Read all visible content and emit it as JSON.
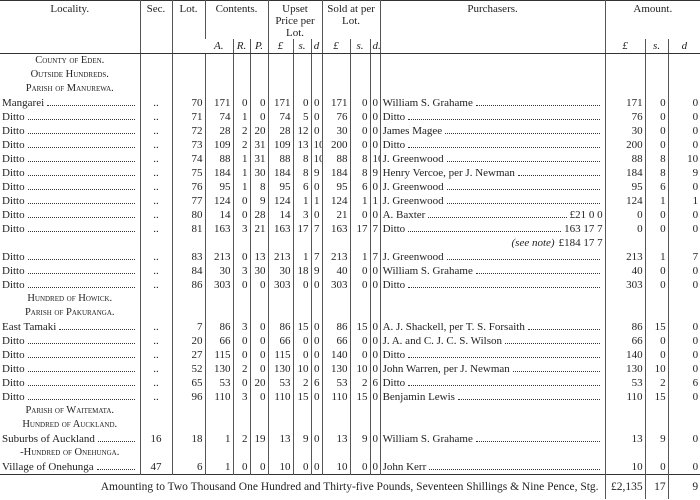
{
  "table": {
    "header": {
      "columns": [
        "Locality.",
        "Sec.",
        "Lot.",
        "Contents.",
        "Upset Price per Lot.",
        "Sold at per Lot.",
        "Purchasers.",
        "Amount."
      ],
      "contents_units": [
        "A.",
        "R.",
        "P."
      ],
      "upset_units": [
        "£",
        "s.",
        "d"
      ],
      "sold_units": [
        "£",
        "s.",
        "d."
      ],
      "amount_units": [
        "£",
        "s.",
        "d"
      ]
    },
    "rows": [
      {
        "heading": "County of Eden."
      },
      {
        "heading": "Outside Hundreds."
      },
      {
        "heading": "Parish of Manurewa."
      },
      {
        "locality": "Mangarei",
        "sec": "..",
        "lot": 70,
        "contents": [
          171,
          0,
          0
        ],
        "upset": [
          171,
          0,
          0
        ],
        "sold": [
          171,
          0,
          0
        ],
        "purchaser": "William S. Grahame",
        "amount": [
          171,
          0,
          0
        ]
      },
      {
        "locality": "Ditto",
        "sec": "..",
        "lot": 71,
        "contents": [
          74,
          1,
          0
        ],
        "upset": [
          74,
          5,
          0
        ],
        "sold": [
          76,
          0,
          0
        ],
        "purchaser": "Ditto",
        "amount": [
          76,
          0,
          0
        ]
      },
      {
        "locality": "Ditto",
        "sec": "..",
        "lot": 72,
        "contents": [
          28,
          2,
          20
        ],
        "upset": [
          28,
          12,
          0
        ],
        "sold": [
          30,
          0,
          0
        ],
        "purchaser": "James Magee",
        "amount": [
          30,
          0,
          0
        ]
      },
      {
        "locality": "Ditto",
        "sec": "..",
        "lot": 73,
        "contents": [
          109,
          2,
          31
        ],
        "upset": [
          109,
          13,
          10
        ],
        "sold": [
          200,
          0,
          0
        ],
        "purchaser": "Ditto",
        "amount": [
          200,
          0,
          0
        ]
      },
      {
        "locality": "Ditto",
        "sec": "..",
        "lot": 74,
        "contents": [
          88,
          1,
          31
        ],
        "upset": [
          88,
          8,
          10
        ],
        "sold": [
          88,
          8,
          10
        ],
        "purchaser": "J. Greenwood",
        "amount": [
          88,
          8,
          10
        ]
      },
      {
        "locality": "Ditto",
        "sec": "..",
        "lot": 75,
        "contents": [
          184,
          1,
          30
        ],
        "upset": [
          184,
          8,
          9
        ],
        "sold": [
          184,
          8,
          9
        ],
        "purchaser": "Henry Vercoe, per J. Newman",
        "amount": [
          184,
          8,
          9
        ]
      },
      {
        "locality": "Ditto",
        "sec": "..",
        "lot": 76,
        "contents": [
          95,
          1,
          8
        ],
        "upset": [
          95,
          6,
          0
        ],
        "sold": [
          95,
          6,
          0
        ],
        "purchaser": "J. Greenwood",
        "amount": [
          95,
          6,
          0
        ]
      },
      {
        "locality": "Ditto",
        "sec": "..",
        "lot": 77,
        "contents": [
          124,
          0,
          9
        ],
        "upset": [
          124,
          1,
          1
        ],
        "sold": [
          124,
          1,
          1
        ],
        "purchaser": "J. Greenwood",
        "amount": [
          124,
          1,
          1
        ]
      },
      {
        "locality": "Ditto",
        "sec": "..",
        "lot": 80,
        "contents": [
          14,
          0,
          28
        ],
        "upset": [
          14,
          3,
          0
        ],
        "sold": [
          21,
          0,
          0
        ],
        "purchaser": "A. Baxter",
        "purchaser_amount": "£21 0 0",
        "amount": [
          0,
          0,
          0
        ]
      },
      {
        "locality": "Ditto",
        "sec": "..",
        "lot": 81,
        "contents": [
          163,
          3,
          21
        ],
        "upset": [
          163,
          17,
          7
        ],
        "sold": [
          163,
          17,
          7
        ],
        "purchaser": "Ditto",
        "purchaser_amount": "163 17 7",
        "amount": [
          0,
          0,
          0
        ]
      },
      {
        "note": "(see note)",
        "note_amount": "£184 17 7"
      },
      {
        "locality": "Ditto",
        "sec": "..",
        "lot": 83,
        "contents": [
          213,
          0,
          13
        ],
        "upset": [
          213,
          1,
          7
        ],
        "sold": [
          213,
          1,
          7
        ],
        "purchaser": "J. Greenwood",
        "amount": [
          213,
          1,
          7
        ]
      },
      {
        "locality": "Ditto",
        "sec": "..",
        "lot": 84,
        "contents": [
          30,
          3,
          30
        ],
        "upset": [
          30,
          18,
          9
        ],
        "sold": [
          40,
          0,
          0
        ],
        "purchaser": "William S. Grahame",
        "amount": [
          40,
          0,
          0
        ]
      },
      {
        "locality": "Ditto",
        "sec": "..",
        "lot": 86,
        "contents": [
          303,
          0,
          0
        ],
        "upset": [
          303,
          0,
          0
        ],
        "sold": [
          303,
          0,
          0
        ],
        "purchaser": "Ditto",
        "amount": [
          303,
          0,
          0
        ]
      },
      {
        "heading": "Hundred of Howick."
      },
      {
        "heading": "Parish of Pakuranga."
      },
      {
        "locality": "East Tamaki",
        "sec": "..",
        "lot": 7,
        "contents": [
          86,
          3,
          0
        ],
        "upset": [
          86,
          15,
          0
        ],
        "sold": [
          86,
          15,
          0
        ],
        "purchaser": "A. J. Shackell, per T. S. Forsaith",
        "amount": [
          86,
          15,
          0
        ]
      },
      {
        "locality": "Ditto",
        "sec": "..",
        "lot": 20,
        "contents": [
          66,
          0,
          0
        ],
        "upset": [
          66,
          0,
          0
        ],
        "sold": [
          66,
          0,
          0
        ],
        "purchaser": "J. A. and C. J. C. S. Wilson",
        "amount": [
          66,
          0,
          0
        ]
      },
      {
        "locality": "Ditto",
        "sec": "..",
        "lot": 27,
        "contents": [
          115,
          0,
          0
        ],
        "upset": [
          115,
          0,
          0
        ],
        "sold": [
          140,
          0,
          0
        ],
        "purchaser": "Ditto",
        "amount": [
          140,
          0,
          0
        ]
      },
      {
        "locality": "Ditto",
        "sec": "..",
        "lot": 52,
        "contents": [
          130,
          2,
          0
        ],
        "upset": [
          130,
          10,
          0
        ],
        "sold": [
          130,
          10,
          0
        ],
        "purchaser": "John Warren, per J. Newman",
        "amount": [
          130,
          10,
          0
        ]
      },
      {
        "locality": "Ditto",
        "sec": "..",
        "lot": 65,
        "contents": [
          53,
          0,
          20
        ],
        "upset": [
          53,
          2,
          6
        ],
        "sold": [
          53,
          2,
          6
        ],
        "purchaser": "Ditto",
        "amount": [
          53,
          2,
          6
        ]
      },
      {
        "locality": "Ditto",
        "sec": "..",
        "lot": 96,
        "contents": [
          110,
          3,
          0
        ],
        "upset": [
          110,
          15,
          0
        ],
        "sold": [
          110,
          15,
          0
        ],
        "purchaser": "Benjamin Lewis",
        "amount": [
          110,
          15,
          0
        ]
      },
      {
        "heading": "Parish of Waitemata."
      },
      {
        "heading": "Hundred of Auckland."
      },
      {
        "locality": "Suburbs of Auckland",
        "sec": 16,
        "lot": 18,
        "contents": [
          1,
          2,
          19
        ],
        "upset": [
          13,
          9,
          0
        ],
        "sold": [
          13,
          9,
          0
        ],
        "purchaser": "William S. Grahame",
        "amount": [
          13,
          9,
          0
        ]
      },
      {
        "heading": "-Hundred of Onehunga."
      },
      {
        "locality": "Village of Onehunga",
        "sec": 47,
        "lot": 6,
        "contents": [
          1,
          0,
          0
        ],
        "upset": [
          10,
          0,
          0
        ],
        "sold": [
          10,
          0,
          0
        ],
        "purchaser": "John Kerr",
        "amount": [
          10,
          0,
          0
        ]
      }
    ],
    "total": {
      "label": "Amounting to Two Thousand One Hundred and Thirty-five Pounds, Seventeen Shillings & Nine Pence, Stg.",
      "pounds": "£2,135",
      "shillings": 17,
      "pence": 9
    }
  }
}
